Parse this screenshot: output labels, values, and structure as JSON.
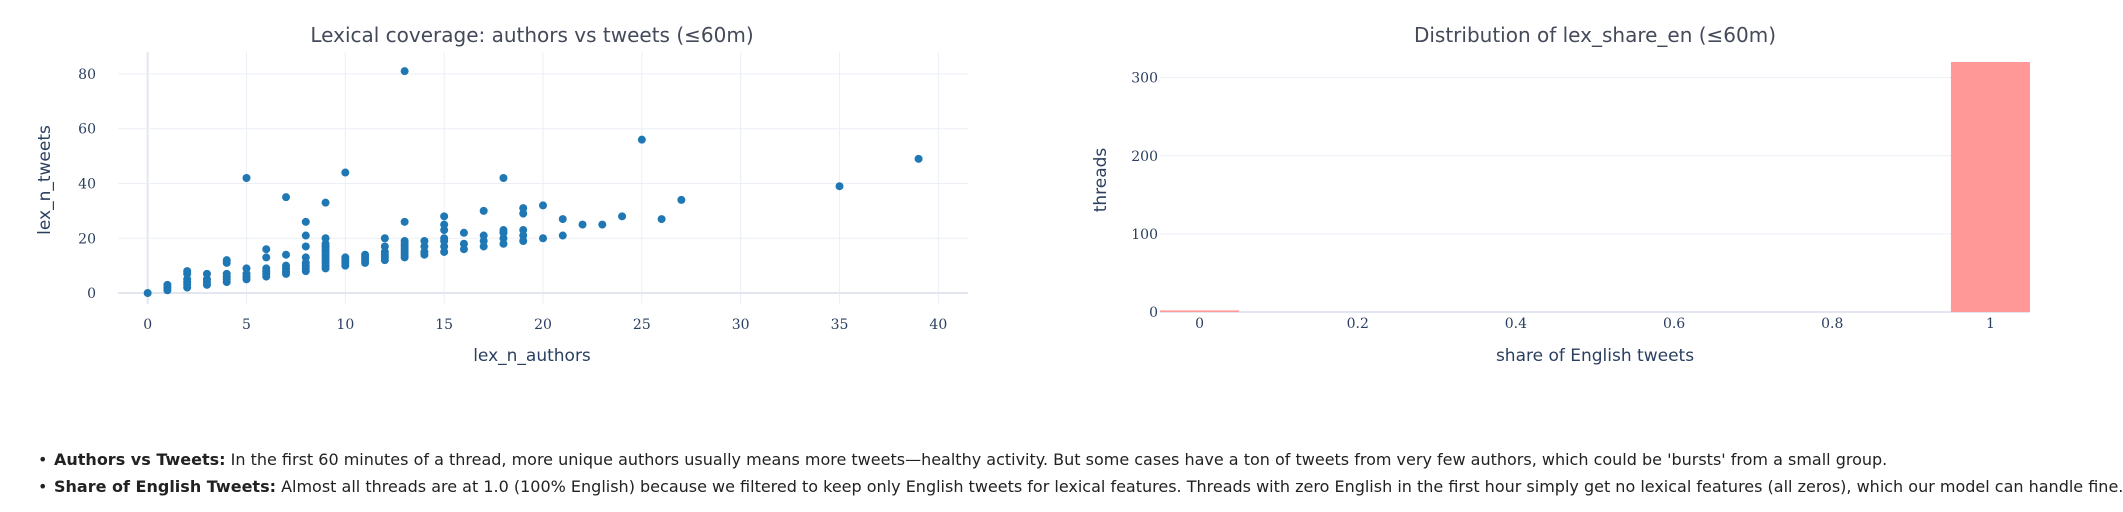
{
  "chart_data": [
    {
      "type": "scatter",
      "title": "Lexical coverage: authors vs tweets (≤60m)",
      "xlabel": "lex_n_authors",
      "ylabel": "lex_n_tweets",
      "xlim": [
        -1.5,
        41.5
      ],
      "ylim": [
        -4,
        88
      ],
      "xticks": [
        0,
        5,
        10,
        15,
        20,
        25,
        30,
        35,
        40
      ],
      "yticks": [
        0,
        20,
        40,
        60,
        80
      ],
      "grid": true,
      "marker_color": "#1f77b4",
      "points": [
        [
          0,
          0
        ],
        [
          1,
          1
        ],
        [
          1,
          2
        ],
        [
          1,
          3
        ],
        [
          2,
          2
        ],
        [
          2,
          3
        ],
        [
          2,
          4
        ],
        [
          2,
          5
        ],
        [
          2,
          7
        ],
        [
          2,
          8
        ],
        [
          3,
          3
        ],
        [
          3,
          4
        ],
        [
          3,
          5
        ],
        [
          3,
          7
        ],
        [
          4,
          4
        ],
        [
          4,
          5
        ],
        [
          4,
          6
        ],
        [
          4,
          7
        ],
        [
          4,
          11
        ],
        [
          4,
          12
        ],
        [
          5,
          5
        ],
        [
          5,
          6
        ],
        [
          5,
          7
        ],
        [
          5,
          9
        ],
        [
          5,
          42
        ],
        [
          6,
          6
        ],
        [
          6,
          7
        ],
        [
          6,
          8
        ],
        [
          6,
          9
        ],
        [
          6,
          13
        ],
        [
          6,
          16
        ],
        [
          7,
          7
        ],
        [
          7,
          8
        ],
        [
          7,
          9
        ],
        [
          7,
          10
        ],
        [
          7,
          14
        ],
        [
          7,
          35
        ],
        [
          8,
          8
        ],
        [
          8,
          9
        ],
        [
          8,
          10
        ],
        [
          8,
          11
        ],
        [
          8,
          13
        ],
        [
          8,
          17
        ],
        [
          8,
          21
        ],
        [
          8,
          26
        ],
        [
          9,
          9
        ],
        [
          9,
          10
        ],
        [
          9,
          11
        ],
        [
          9,
          12
        ],
        [
          9,
          13
        ],
        [
          9,
          14
        ],
        [
          9,
          15
        ],
        [
          9,
          16
        ],
        [
          9,
          17
        ],
        [
          9,
          18
        ],
        [
          9,
          20
        ],
        [
          9,
          33
        ],
        [
          10,
          10
        ],
        [
          10,
          11
        ],
        [
          10,
          12
        ],
        [
          10,
          13
        ],
        [
          10,
          44
        ],
        [
          11,
          11
        ],
        [
          11,
          12
        ],
        [
          11,
          13
        ],
        [
          11,
          14
        ],
        [
          12,
          12
        ],
        [
          12,
          13
        ],
        [
          12,
          14
        ],
        [
          12,
          15
        ],
        [
          12,
          17
        ],
        [
          12,
          20
        ],
        [
          13,
          13
        ],
        [
          13,
          14
        ],
        [
          13,
          15
        ],
        [
          13,
          16
        ],
        [
          13,
          17
        ],
        [
          13,
          18
        ],
        [
          13,
          19
        ],
        [
          13,
          26
        ],
        [
          13,
          81
        ],
        [
          14,
          14
        ],
        [
          14,
          15
        ],
        [
          14,
          17
        ],
        [
          14,
          19
        ],
        [
          15,
          15
        ],
        [
          15,
          17
        ],
        [
          15,
          19
        ],
        [
          15,
          20
        ],
        [
          15,
          23
        ],
        [
          15,
          25
        ],
        [
          15,
          28
        ],
        [
          16,
          16
        ],
        [
          16,
          18
        ],
        [
          16,
          22
        ],
        [
          17,
          17
        ],
        [
          17,
          19
        ],
        [
          17,
          21
        ],
        [
          17,
          30
        ],
        [
          18,
          18
        ],
        [
          18,
          20
        ],
        [
          18,
          22
        ],
        [
          18,
          23
        ],
        [
          18,
          42
        ],
        [
          19,
          19
        ],
        [
          19,
          21
        ],
        [
          19,
          23
        ],
        [
          19,
          29
        ],
        [
          19,
          31
        ],
        [
          20,
          20
        ],
        [
          20,
          32
        ],
        [
          21,
          21
        ],
        [
          21,
          27
        ],
        [
          22,
          25
        ],
        [
          23,
          25
        ],
        [
          24,
          28
        ],
        [
          25,
          56
        ],
        [
          26,
          27
        ],
        [
          27,
          34
        ],
        [
          35,
          39
        ],
        [
          39,
          49
        ]
      ]
    },
    {
      "type": "bar",
      "title": "Distribution of lex_share_en (≤60m)",
      "xlabel": "share of English tweets",
      "ylabel": "threads",
      "xlim": [
        -0.05,
        1.05
      ],
      "ylim": [
        0,
        320
      ],
      "xticks": [
        0,
        0.2,
        0.4,
        0.6,
        0.8,
        1
      ],
      "yticks": [
        0,
        100,
        200,
        300
      ],
      "bar_color": "#ff9896",
      "bins": [
        {
          "x0": -0.05,
          "x1": 0.05,
          "count": 2
        },
        {
          "x0": 0.95,
          "x1": 1.05,
          "count": 320
        }
      ]
    }
  ],
  "notes": [
    {
      "label": "Authors vs Tweets:",
      "text": "In the first 60 minutes of a thread, more unique authors usually means more tweets—healthy activity. But some cases have a ton of tweets from very few authors, which could be 'bursts' from a small group."
    },
    {
      "label": "Share of English Tweets:",
      "text": "Almost all threads are at 1.0 (100% English) because we filtered to keep only English tweets for lexical features. Threads with zero English in the first hour simply get no lexical features (all zeros), which our model can handle fine."
    }
  ]
}
